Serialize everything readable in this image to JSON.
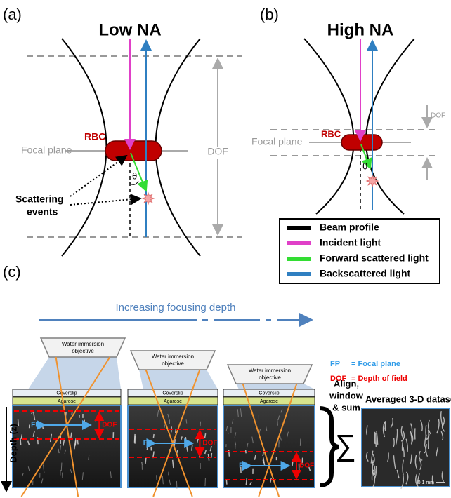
{
  "panel_a": {
    "label": "(a)",
    "title": "Low NA",
    "rbc": "RBC",
    "focal_plane": "Focal plane",
    "dof": "DOF",
    "theta": "θ",
    "scattering_events": [
      "Scattering",
      "events"
    ]
  },
  "panel_b": {
    "label": "(b)",
    "title": "High NA",
    "rbc": "RBC",
    "focal_plane": "Focal plane",
    "dof": "DOF",
    "theta": "θ"
  },
  "legend": [
    {
      "label": "Beam profile",
      "color": "#000000"
    },
    {
      "label": "Incident light",
      "color": "#e040c8"
    },
    {
      "label": "Forward scattered light",
      "color": "#33dd33"
    },
    {
      "label": "Backscattered light",
      "color": "#2f7fc1"
    }
  ],
  "panel_c": {
    "label": "(c)",
    "arrow_label": "Increasing focusing depth",
    "key": [
      {
        "abbr": "FP",
        "text": "= Focal plane"
      },
      {
        "abbr": "DOF",
        "text": "= Depth of field"
      }
    ],
    "columns": [
      {
        "objective": [
          "Water immersion",
          "objective"
        ],
        "coverslip": "Coverslip",
        "agarose": "Agarose",
        "fp": "FP",
        "dof": "DOF"
      },
      {
        "objective": [
          "Water immersion",
          "objective"
        ],
        "coverslip": "Coverslip",
        "agarose": "Agarose",
        "fp": "FP",
        "dof": "DOF"
      },
      {
        "objective": [
          "Water immersion",
          "objective"
        ],
        "coverslip": "Coverslip",
        "agarose": "Agarose",
        "fp": "FP",
        "dof": "DOF"
      }
    ],
    "depth_axis": "Depth (z)",
    "process": [
      "Align,",
      "window",
      "& sum"
    ],
    "sum_symbol": "∑",
    "dataset_title": "Averaged 3-D dataset",
    "scale_bar": "0.1 mm"
  }
}
